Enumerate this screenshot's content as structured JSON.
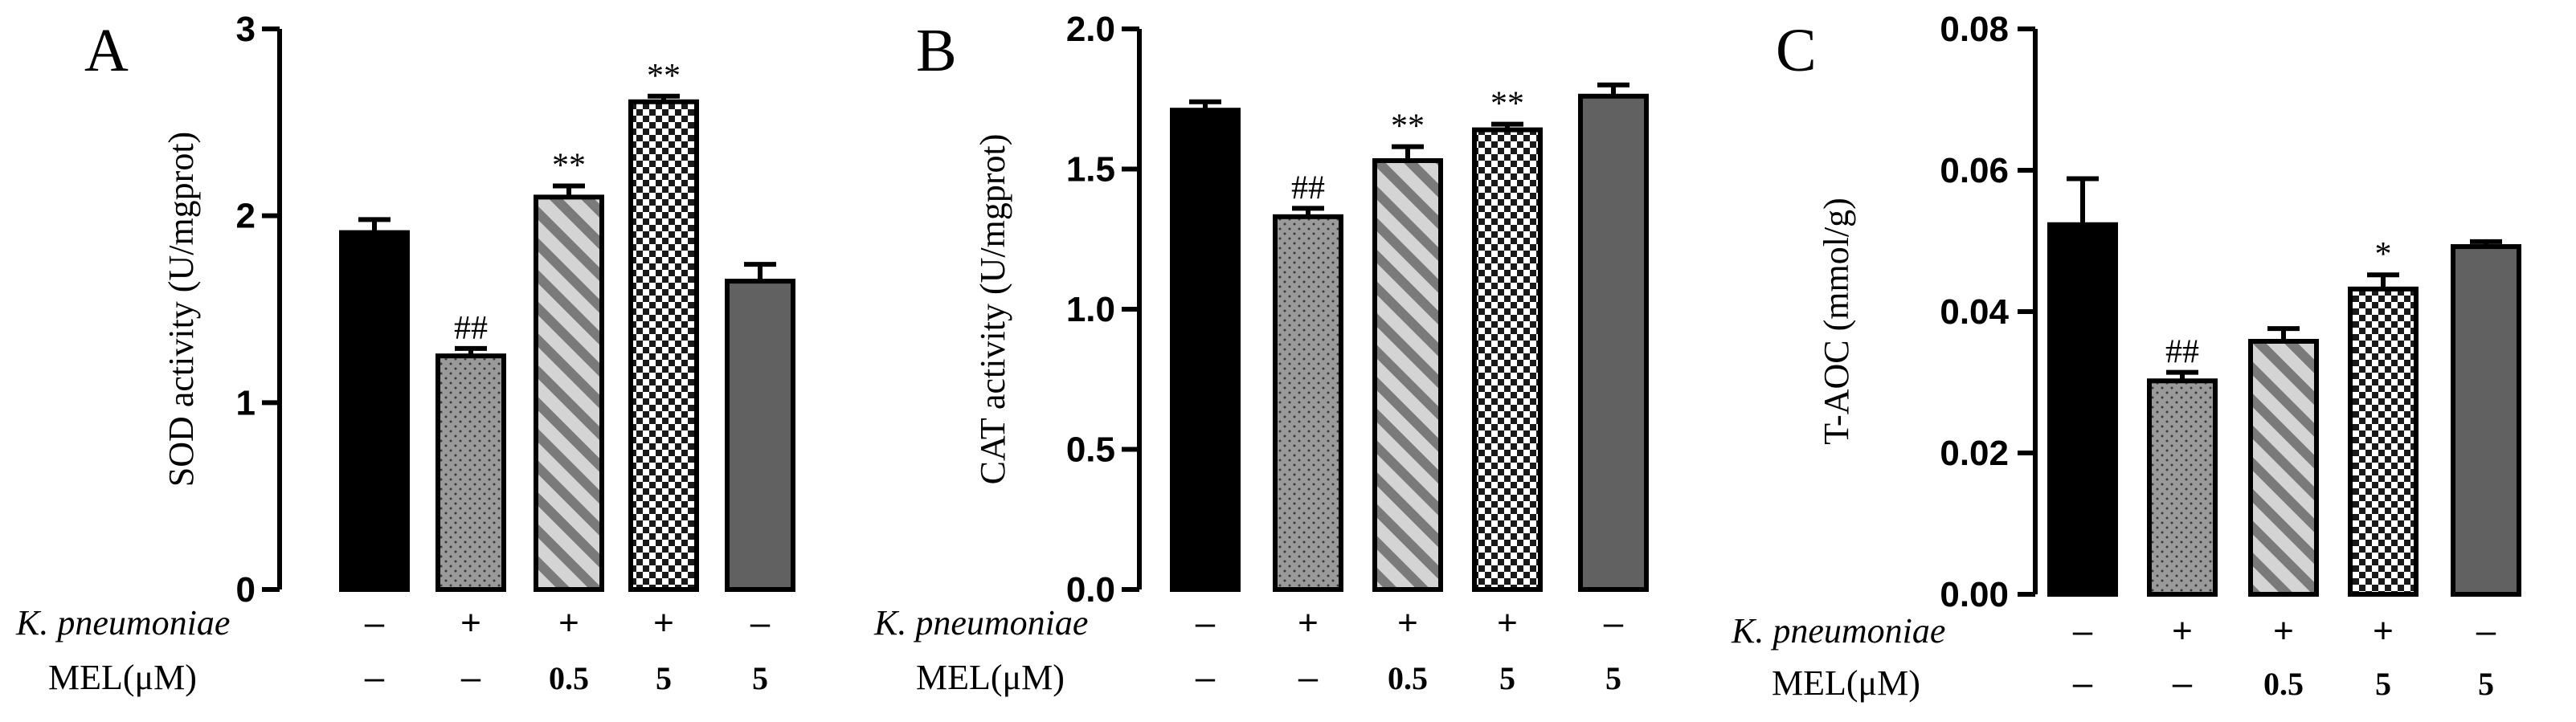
{
  "row_labels": {
    "k_pneumoniae": "K. pneumoniae",
    "mel": "MEL(μM)"
  },
  "conditions": {
    "k_pneumoniae": [
      "–",
      "+",
      "+",
      "+",
      "–"
    ],
    "mel": [
      "–",
      "–",
      "0.5",
      "5",
      "5"
    ]
  },
  "colors": {
    "black": "#000000",
    "dotted_fill": "#9a9a9a",
    "stripe_light": "#d4d4d4",
    "stripe_dark": "#7a7a7a",
    "checker_light": "#ffffff",
    "checker_dark": "#1a1a1a",
    "solid_grey": "#616161"
  },
  "chart_data": [
    {
      "type": "bar",
      "panel_label": "A",
      "ylabel": "SOD activity (U/mgprot)",
      "ylim": [
        0,
        3
      ],
      "yticks": [
        "0",
        "1",
        "2",
        "3"
      ],
      "ytick_values": [
        0,
        1,
        2,
        3
      ],
      "values": [
        1.91,
        1.25,
        2.1,
        2.61,
        1.65
      ],
      "errors": [
        0.07,
        0.04,
        0.06,
        0.03,
        0.09
      ],
      "annotations": [
        "",
        "##",
        "**",
        "**",
        ""
      ],
      "patterns": [
        "black",
        "dots",
        "stripes",
        "checker",
        "grey"
      ]
    },
    {
      "type": "bar",
      "panel_label": "B",
      "ylabel": "CAT activity (U/mgprot)",
      "ylim": [
        0,
        2
      ],
      "yticks": [
        "0.0",
        "0.5",
        "1.0",
        "1.5",
        "2.0"
      ],
      "ytick_values": [
        0,
        0.5,
        1,
        1.5,
        2
      ],
      "values": [
        1.71,
        1.33,
        1.53,
        1.64,
        1.76
      ],
      "errors": [
        0.03,
        0.03,
        0.05,
        0.02,
        0.04
      ],
      "annotations": [
        "",
        "##",
        "**",
        "**",
        ""
      ],
      "patterns": [
        "black",
        "dots",
        "stripes",
        "checker",
        "grey"
      ]
    },
    {
      "type": "bar",
      "panel_label": "C",
      "ylabel": "T-AOC (mmol/g)",
      "ylim": [
        0,
        0.08
      ],
      "yticks": [
        "0.00",
        "0.02",
        "0.04",
        "0.06",
        "0.08"
      ],
      "ytick_values": [
        0,
        0.02,
        0.04,
        0.06,
        0.08
      ],
      "values": [
        0.0523,
        0.0302,
        0.0358,
        0.0432,
        0.0492
      ],
      "errors": [
        0.0065,
        0.0012,
        0.0018,
        0.002,
        0.0007
      ],
      "annotations": [
        "",
        "##",
        "",
        "*",
        ""
      ],
      "patterns": [
        "black",
        "dots",
        "stripes",
        "checker",
        "grey"
      ]
    }
  ]
}
